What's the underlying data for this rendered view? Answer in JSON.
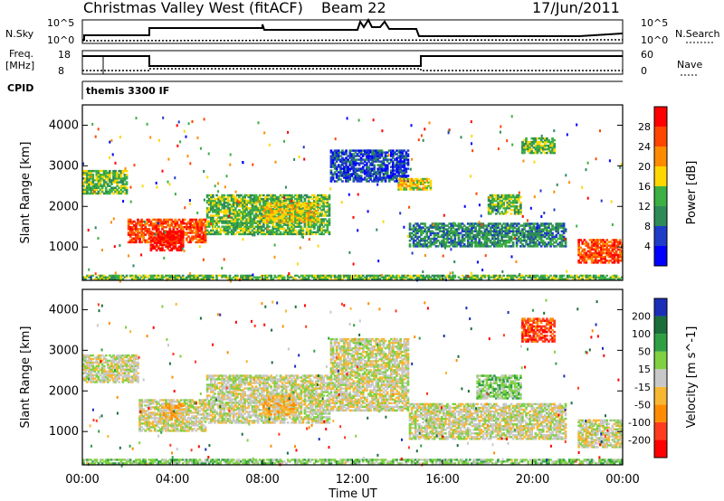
{
  "header": {
    "title": "Christmas Valley West (fitACF)",
    "beam": "Beam 22",
    "date": "17/Jun/2011"
  },
  "time_axis": {
    "label": "Time UT",
    "ticks": [
      "00:00",
      "04:00",
      "08:00",
      "12:00",
      "16:00",
      "20:00",
      "00:00"
    ],
    "range_hours": [
      0,
      24
    ]
  },
  "param_panels": {
    "nsky_label": "N.Sky",
    "nsky_ticks": [
      "10^5",
      "10^0"
    ],
    "nsearch_label": "N.Search",
    "nsearch_ticks": [
      "10^5",
      "10^0"
    ],
    "freq_label_1": "Freq.",
    "freq_label_2": "[MHz]",
    "freq_ticks": [
      "18",
      "8"
    ],
    "nave_label": "Nave",
    "nave_ticks": [
      "60",
      "0"
    ],
    "cpid_label": "CPID",
    "cpid_value": "themis 3300 IF"
  },
  "colors": {
    "power_scale": [
      "#0000ff",
      "#1e3cc8",
      "#2e8b57",
      "#3cb043",
      "#ffd700",
      "#ff8c00",
      "#ff4500",
      "#ff0000"
    ],
    "velocity_scale": [
      "#1a2fb8",
      "#1b6e3a",
      "#2ea043",
      "#7fd142",
      "#c8c8c8",
      "#f7b733",
      "#ff8c00",
      "#ff3b1f",
      "#ff0000"
    ]
  },
  "chart_data": [
    {
      "type": "heatmap",
      "panel": "power",
      "ylabel": "Slant Range [km]",
      "xlabel": "",
      "ylim": [
        180,
        4500
      ],
      "y_ticks": [
        "1000",
        "2000",
        "3000",
        "4000"
      ],
      "colorbar_label": "Power [dB]",
      "colorbar_ticks": [
        "4",
        "8",
        "12",
        "16",
        "20",
        "24",
        "28"
      ],
      "colorbar_range": [
        0,
        30
      ],
      "echo_regions": [
        {
          "t0": 0.0,
          "t1": 2.0,
          "r0": 2300,
          "r1": 2900,
          "level": 3
        },
        {
          "t0": 2.0,
          "t1": 5.5,
          "r0": 1100,
          "r1": 1700,
          "level": 6
        },
        {
          "t0": 3.0,
          "t1": 4.5,
          "r0": 900,
          "r1": 1400,
          "level": 7
        },
        {
          "t0": 5.5,
          "t1": 11.0,
          "r0": 1300,
          "r1": 2300,
          "level": 3
        },
        {
          "t0": 8.0,
          "t1": 10.5,
          "r0": 1600,
          "r1": 2100,
          "level": 4
        },
        {
          "t0": 11.0,
          "t1": 14.5,
          "r0": 2600,
          "r1": 3400,
          "level": 1
        },
        {
          "t0": 14.0,
          "t1": 15.5,
          "r0": 2400,
          "r1": 2700,
          "level": 4
        },
        {
          "t0": 14.5,
          "t1": 21.5,
          "r0": 1000,
          "r1": 1600,
          "level": 2
        },
        {
          "t0": 18.0,
          "t1": 19.5,
          "r0": 1800,
          "r1": 2300,
          "level": 3
        },
        {
          "t0": 19.5,
          "t1": 21.0,
          "r0": 3300,
          "r1": 3700,
          "level": 3
        },
        {
          "t0": 22.0,
          "t1": 24.0,
          "r0": 600,
          "r1": 1200,
          "level": 6
        },
        {
          "t0": 0.0,
          "t1": 24.0,
          "r0": 200,
          "r1": 320,
          "level": 3
        }
      ]
    },
    {
      "type": "heatmap",
      "panel": "velocity",
      "ylabel": "Slant Range [km]",
      "xlabel": "Time UT",
      "ylim": [
        180,
        4500
      ],
      "y_ticks": [
        "1000",
        "2000",
        "3000",
        "4000"
      ],
      "colorbar_label": "Velocity [m s^-1]",
      "colorbar_ticks": [
        "200",
        "100",
        "50",
        "15",
        "-15",
        "-50",
        "-100",
        "-200"
      ],
      "colorbar_range": [
        -250,
        250
      ],
      "echo_regions": [
        {
          "t0": 0.0,
          "t1": 2.5,
          "r0": 2200,
          "r1": 2900,
          "level": 4
        },
        {
          "t0": 2.5,
          "t1": 5.5,
          "r0": 1000,
          "r1": 1800,
          "level": 4
        },
        {
          "t0": 3.5,
          "t1": 4.5,
          "r0": 1300,
          "r1": 1700,
          "level": 5
        },
        {
          "t0": 5.5,
          "t1": 11.0,
          "r0": 1200,
          "r1": 2400,
          "level": 4
        },
        {
          "t0": 8.0,
          "t1": 9.5,
          "r0": 1400,
          "r1": 1900,
          "level": 5
        },
        {
          "t0": 11.0,
          "t1": 14.5,
          "r0": 1500,
          "r1": 3300,
          "level": 4
        },
        {
          "t0": 14.5,
          "t1": 21.5,
          "r0": 800,
          "r1": 1700,
          "level": 4
        },
        {
          "t0": 17.5,
          "t1": 19.5,
          "r0": 1800,
          "r1": 2400,
          "level": 3
        },
        {
          "t0": 19.5,
          "t1": 21.0,
          "r0": 3200,
          "r1": 3800,
          "level": 7
        },
        {
          "t0": 22.0,
          "t1": 24.0,
          "r0": 600,
          "r1": 1300,
          "level": 4
        },
        {
          "t0": 0.0,
          "t1": 24.0,
          "r0": 200,
          "r1": 330,
          "level": 3
        }
      ]
    }
  ]
}
